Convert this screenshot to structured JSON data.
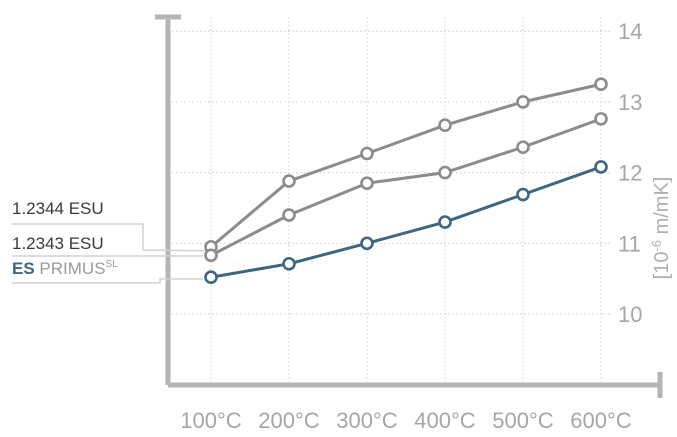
{
  "chart_data": {
    "type": "line",
    "title": "",
    "xlabel": "",
    "ylabel_prefix": "[10",
    "ylabel_exponent": "-6",
    "ylabel_suffix": " m/mK]",
    "categories": [
      "100°C",
      "200°C",
      "300°C",
      "400°C",
      "500°C",
      "600°C"
    ],
    "yticks": [
      "10",
      "11",
      "12",
      "13",
      "14"
    ],
    "ylim": [
      8.9,
      14.3
    ],
    "grid": true,
    "legend": "left",
    "series": [
      {
        "name": "1.2344 ESU",
        "color": "#8c8c8c",
        "values": [
          10.95,
          11.88,
          12.27,
          12.67,
          13.0,
          13.25
        ]
      },
      {
        "name": "1.2343 ESU",
        "color": "#8c8c8c",
        "values": [
          10.83,
          11.4,
          11.85,
          12.0,
          12.36,
          12.76
        ]
      },
      {
        "name_bold": "ES",
        "name_main": " PRIMUS",
        "name_superscript": "SL",
        "color": "#3d6680",
        "values": [
          10.52,
          10.71,
          11.0,
          11.3,
          11.69,
          12.08
        ]
      }
    ]
  }
}
